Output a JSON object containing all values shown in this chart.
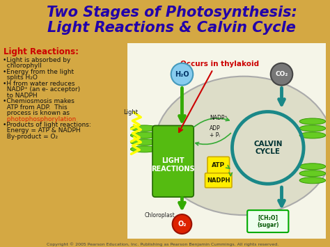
{
  "title_line1": "Two Stages of Photosynthesis:",
  "title_line2": "Light Reactions & Calvin Cycle",
  "title_color": "#2200aa",
  "title_fontsize": 15,
  "bg_color": "#d4a843",
  "subtitle": "Light Reactions:",
  "subtitle_color": "#cc0000",
  "bullet_lines": [
    "•Light is absorbed by\n  chlorophyll",
    "•Energy from the light\n  splits H₂O",
    "•H from water reduces\n  NADP⁺ (an e- acceptor)\n  to NADPH",
    "•Chemiosmosis makes\n  ATP from ADP.  This\n  process is known as\n  photophosphorylation",
    "•Products of light reactions:\n  Energy = ATP & NADPH\n  By-product = O₂"
  ],
  "photo_word": "photophosphorylation",
  "diagram_label_light_reactions": "LIGHT\nREACTIONS",
  "diagram_label_calvin": "CALVIN\nCYCLE",
  "label_h2o": "H₂O",
  "label_o2": "O₂",
  "label_co2": "CO₂",
  "label_sugar": "[CH₂O]\n(sugar)",
  "label_nadp": "NADP⁺",
  "label_adp": "ADP\n+ Pᵢ",
  "label_atp_yellow": "ATP",
  "label_nadph": "NADPH",
  "label_light": "Light",
  "label_chloroplast": "Chloroplast",
  "label_occurs": "Occurs in thylakoid",
  "occurs_color": "#cc0000",
  "green_color": "#33aa00",
  "teal_color": "#1a8888",
  "light_blue": "#77bbdd",
  "dark_gray": "#666666",
  "red_circle_color": "#dd2200",
  "copyright": "Copyright © 2005 Pearson Education, Inc. Publishing as Pearson Benjamin Cummings. All rights reserved.",
  "copyright_color": "#444444",
  "copyright_fontsize": 4.5
}
